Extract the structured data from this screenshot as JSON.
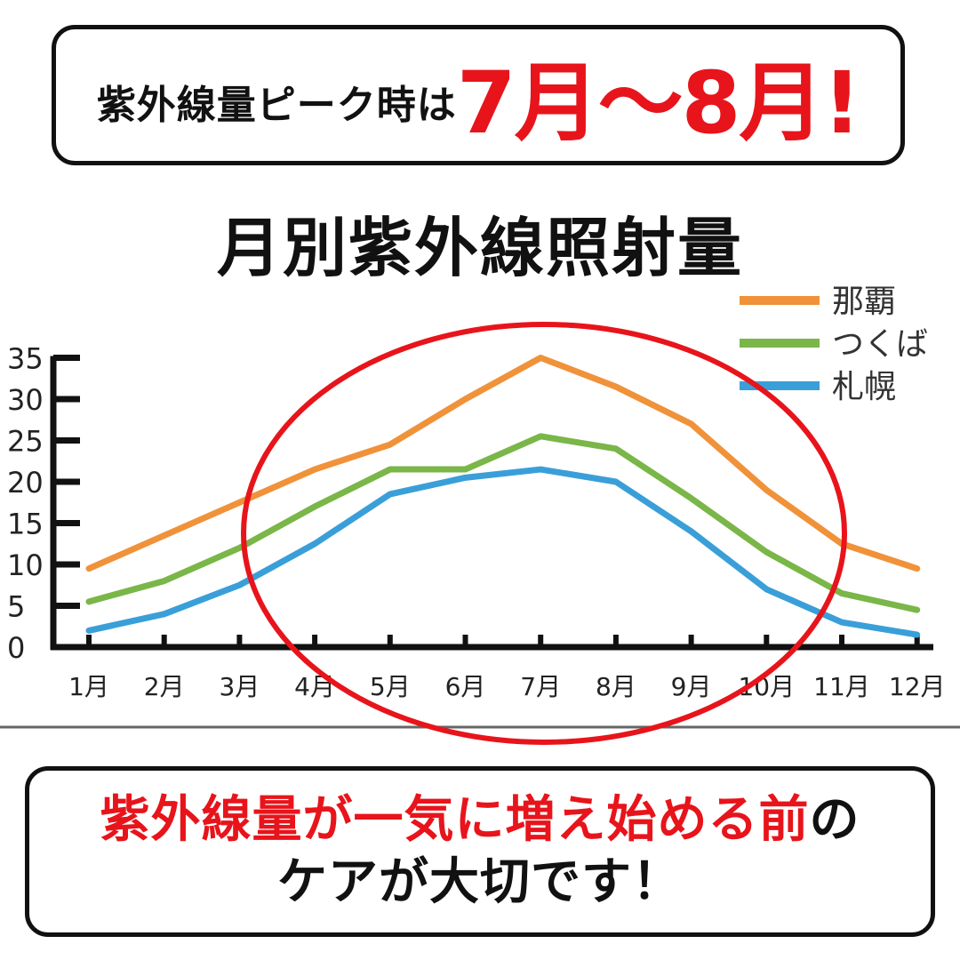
{
  "header": {
    "lead": "紫外線量ピーク時は",
    "emphasis": "7月〜8月!"
  },
  "footer": {
    "line1_red": "紫外線量が一気に増え始める前",
    "line1_dark": "の",
    "line2": "ケアが大切です！"
  },
  "colors": {
    "accent_red": "#e8141b",
    "naha": "#f0923a",
    "tsukuba": "#7ab648",
    "sapporo": "#3a9fd8",
    "axis": "#111111"
  },
  "chart_data": {
    "type": "line",
    "title": "月別紫外線照射量",
    "xlabel": "",
    "ylabel": "",
    "categories": [
      "1月",
      "2月",
      "3月",
      "4月",
      "5月",
      "6月",
      "7月",
      "8月",
      "9月",
      "10月",
      "11月",
      "12月"
    ],
    "ylim": [
      0,
      35
    ],
    "yticks": [
      "0",
      "5",
      "10",
      "15",
      "20",
      "25",
      "30",
      "35"
    ],
    "grid": false,
    "legend_position": "top-right",
    "series": [
      {
        "name": "那覇",
        "color": "#f0923a",
        "values": [
          9.5,
          13.5,
          17.5,
          21.5,
          24.5,
          30,
          35,
          31.5,
          27,
          19,
          12.5,
          9.5
        ]
      },
      {
        "name": "つくば",
        "color": "#7ab648",
        "values": [
          5.5,
          8,
          12,
          17,
          21.5,
          21.5,
          25.5,
          24,
          18,
          11.5,
          6.5,
          4.5
        ]
      },
      {
        "name": "札幌",
        "color": "#3a9fd8",
        "values": [
          2,
          4,
          7.5,
          12.5,
          18.5,
          20.5,
          21.5,
          20,
          14,
          7,
          3,
          1.5
        ]
      }
    ],
    "highlight": "red ellipse around 4月–11月"
  }
}
